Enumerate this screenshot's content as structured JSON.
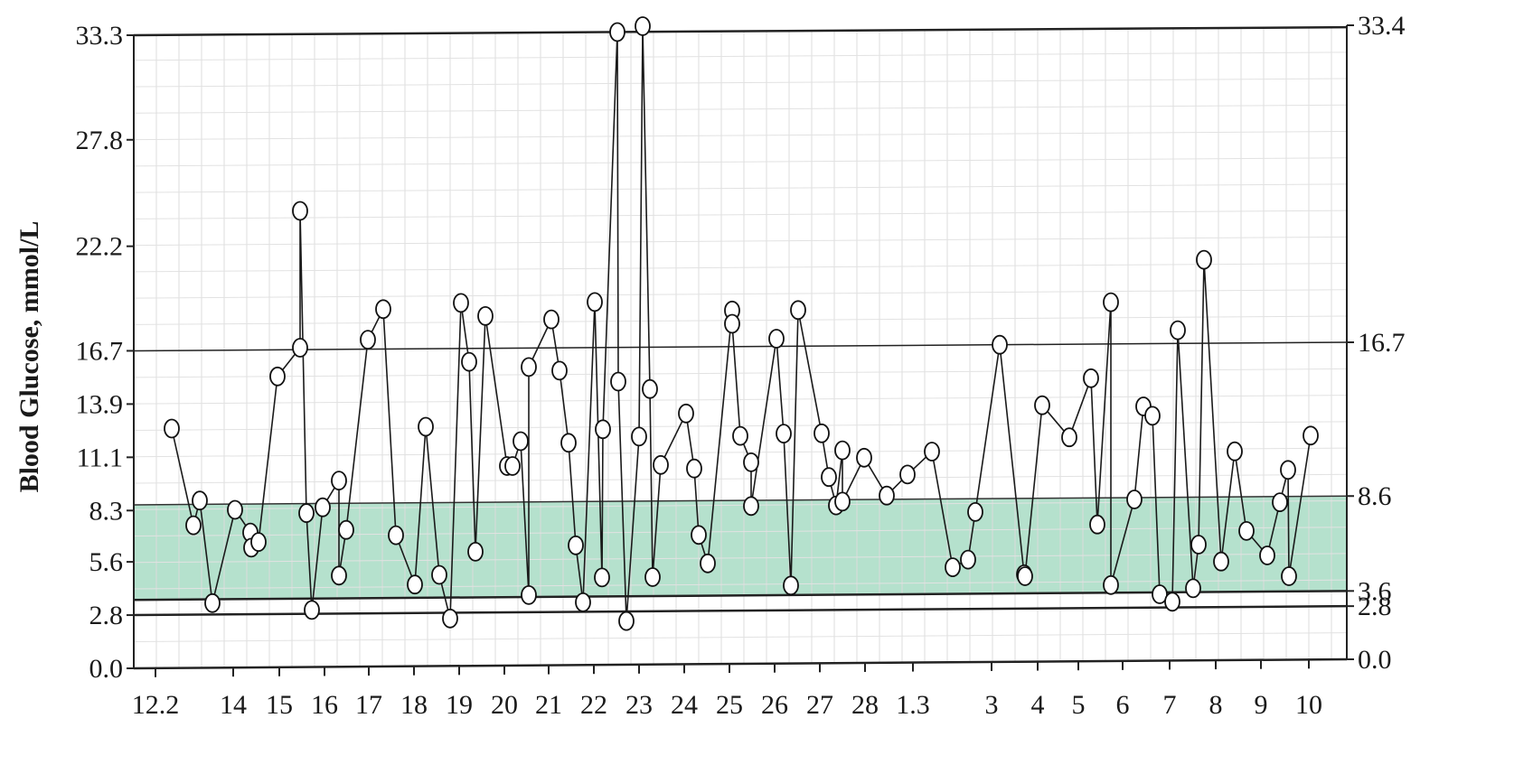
{
  "chart_data": {
    "type": "line",
    "ylabel": "Blood Glucose, mmol/L",
    "ylim": [
      0,
      33.3
    ],
    "y_ticks_left": [
      "0.0",
      "2.8",
      "5.6",
      "8.3",
      "11.1",
      "13.9",
      "16.7",
      "22.2",
      "27.8",
      "33.3"
    ],
    "y_ticks_right": [
      "0.0",
      "2.8",
      "3.6",
      "8.6",
      "16.7",
      "33.4"
    ],
    "x_tick_labels": [
      "12.2",
      "14",
      "15",
      "16",
      "17",
      "18",
      "19",
      "20",
      "21",
      "22",
      "23",
      "24",
      "25",
      "26",
      "27",
      "28",
      "1.3",
      "3",
      "4",
      "5",
      "6",
      "7",
      "8",
      "9",
      "10"
    ],
    "reference_lines": [
      33.3,
      16.7,
      3.6,
      2.8
    ],
    "target_band": [
      3.6,
      8.6
    ],
    "grid": true,
    "marker_color": "#ffffff",
    "line_color": "#1a1a1a",
    "band_color": "#a8dcc4",
    "points": [
      [
        190,
        12.6
      ],
      [
        214,
        7.5
      ],
      [
        221,
        8.8
      ],
      [
        235,
        3.4
      ],
      [
        260,
        8.3
      ],
      [
        277,
        7.1
      ],
      [
        278,
        6.3
      ],
      [
        286,
        6.6
      ],
      [
        307,
        15.3
      ],
      [
        332,
        16.8
      ],
      [
        332,
        24.0
      ],
      [
        339,
        8.1
      ],
      [
        345,
        3.0
      ],
      [
        357,
        8.4
      ],
      [
        375,
        9.8
      ],
      [
        375,
        4.8
      ],
      [
        383,
        7.2
      ],
      [
        407,
        17.2
      ],
      [
        424,
        18.8
      ],
      [
        438,
        6.9
      ],
      [
        459,
        4.3
      ],
      [
        471,
        12.6
      ],
      [
        486,
        4.8
      ],
      [
        498,
        2.5
      ],
      [
        510,
        19.1
      ],
      [
        519,
        16.0
      ],
      [
        526,
        6.0
      ],
      [
        537,
        18.4
      ],
      [
        561,
        10.5
      ],
      [
        567,
        10.5
      ],
      [
        576,
        11.8
      ],
      [
        585,
        3.7
      ],
      [
        585,
        15.7
      ],
      [
        610,
        18.2
      ],
      [
        619,
        15.5
      ],
      [
        629,
        11.7
      ],
      [
        637,
        6.3
      ],
      [
        645,
        3.3
      ],
      [
        658,
        19.1
      ],
      [
        666,
        4.6
      ],
      [
        667,
        12.4
      ],
      [
        683,
        33.3
      ],
      [
        684,
        14.9
      ],
      [
        693,
        2.3
      ],
      [
        707,
        12.0
      ],
      [
        711,
        33.6
      ],
      [
        719,
        14.5
      ],
      [
        722,
        4.6
      ],
      [
        731,
        10.5
      ],
      [
        759,
        13.2
      ],
      [
        768,
        10.3
      ],
      [
        773,
        6.8
      ],
      [
        783,
        5.3
      ],
      [
        810,
        18.6
      ],
      [
        810,
        17.9
      ],
      [
        819,
        12.0
      ],
      [
        831,
        10.6
      ],
      [
        831,
        8.3
      ],
      [
        859,
        17.1
      ],
      [
        867,
        12.1
      ],
      [
        875,
        4.1
      ],
      [
        883,
        18.6
      ],
      [
        909,
        12.1
      ],
      [
        917,
        9.8
      ],
      [
        925,
        8.3
      ],
      [
        932,
        11.2
      ],
      [
        932,
        8.5
      ],
      [
        956,
        10.8
      ],
      [
        981,
        8.8
      ],
      [
        1004,
        9.9
      ],
      [
        1031,
        11.1
      ],
      [
        1054,
        5.0
      ],
      [
        1071,
        5.4
      ],
      [
        1079,
        7.9
      ],
      [
        1106,
        16.7
      ],
      [
        1133,
        4.6
      ],
      [
        1134,
        4.5
      ],
      [
        1153,
        13.5
      ],
      [
        1183,
        11.8
      ],
      [
        1207,
        14.9
      ],
      [
        1214,
        7.2
      ],
      [
        1229,
        18.9
      ],
      [
        1229,
        4.0
      ],
      [
        1255,
        8.5
      ],
      [
        1265,
        13.4
      ],
      [
        1275,
        12.9
      ],
      [
        1283,
        3.5
      ],
      [
        1297,
        3.1
      ],
      [
        1303,
        17.4
      ],
      [
        1320,
        3.8
      ],
      [
        1326,
        6.1
      ],
      [
        1332,
        21.1
      ],
      [
        1351,
        5.2
      ],
      [
        1366,
        11.0
      ],
      [
        1379,
        6.8
      ],
      [
        1402,
        5.5
      ],
      [
        1416,
        8.3
      ],
      [
        1425,
        10.0
      ],
      [
        1426,
        4.4
      ],
      [
        1450,
        11.8
      ]
    ]
  }
}
